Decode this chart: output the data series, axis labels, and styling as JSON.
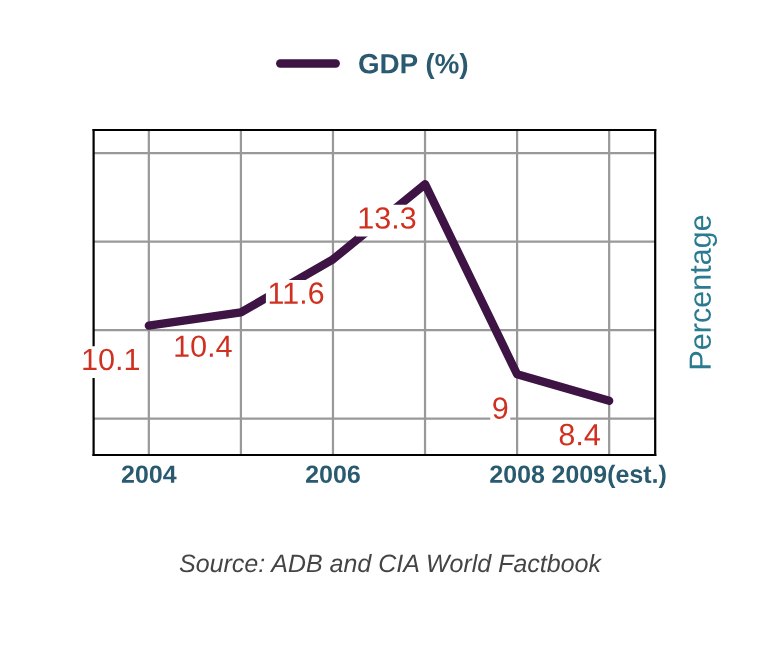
{
  "chart_data": {
    "type": "line",
    "categories": [
      "2004",
      null,
      "2006",
      null,
      "2008",
      "2009(est.)"
    ],
    "series": [
      {
        "name": "GDP (%)",
        "color": "#3d1444",
        "values": [
          10.1,
          10.4,
          11.6,
          13.3,
          9,
          8.4
        ]
      }
    ],
    "ylabel": "Percentage",
    "data_labels": true,
    "grid": true,
    "legend": "top",
    "tick_labels": "x",
    "annotations": [
      "Source: ADB and CIA World Factbook"
    ]
  }
}
